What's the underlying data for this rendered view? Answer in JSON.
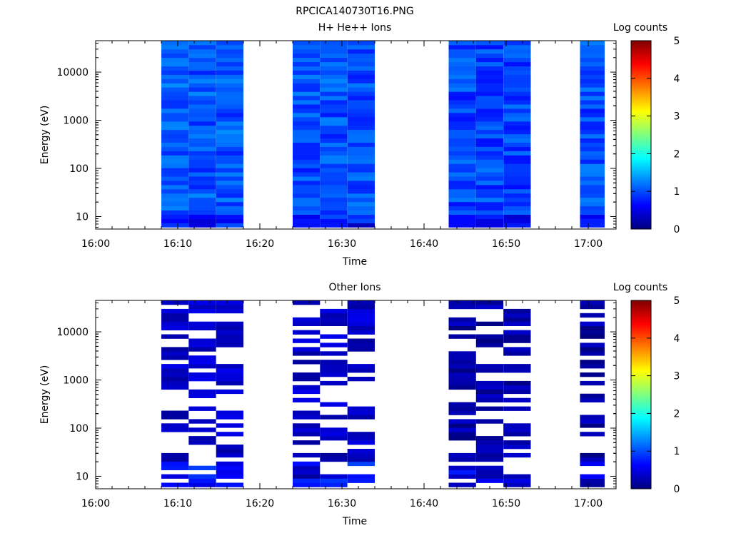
{
  "page_title": "RPCICA140730T16.PNG",
  "colormap": [
    "#00007f",
    "#0000ff",
    "#007fff",
    "#00ffff",
    "#7fff7f",
    "#ffff00",
    "#ff7f00",
    "#ff0000",
    "#7f0000"
  ],
  "chart_data": [
    {
      "type": "heatmap",
      "title": "H+ He++ Ions",
      "xlabel": "Time",
      "ylabel": "Energy (eV)",
      "x_ticks": [
        "16:00",
        "16:10",
        "16:20",
        "16:30",
        "16:40",
        "16:50",
        "17:00"
      ],
      "y_ticks": [
        "10",
        "100",
        "1000",
        "10000"
      ],
      "y_scale": "log",
      "ylim": [
        5.5,
        45000
      ],
      "colorbar": {
        "label": "Log counts",
        "ticks": [
          "0",
          "1",
          "2",
          "3",
          "4",
          "5"
        ],
        "range": [
          0,
          5
        ]
      },
      "blocks": [
        {
          "start": "16:08",
          "end": "16:18",
          "columns": 3,
          "level": 1.05
        },
        {
          "start": "16:24",
          "end": "16:34",
          "columns": 3,
          "level": 1.0
        },
        {
          "start": "16:43",
          "end": "16:53",
          "columns": 3,
          "level": 0.95
        },
        {
          "start": "16:59",
          "end": "17:02",
          "columns": 1,
          "level": 1.0
        }
      ]
    },
    {
      "type": "heatmap",
      "title": "Other Ions",
      "xlabel": "Time",
      "ylabel": "Energy (eV)",
      "x_ticks": [
        "16:00",
        "16:10",
        "16:20",
        "16:30",
        "16:40",
        "16:50",
        "17:00"
      ],
      "y_ticks": [
        "10",
        "100",
        "1000",
        "10000"
      ],
      "y_scale": "log",
      "ylim": [
        5.5,
        45000
      ],
      "colorbar": {
        "label": "Log counts",
        "ticks": [
          "0",
          "1",
          "2",
          "3",
          "4",
          "5"
        ],
        "range": [
          0,
          5
        ]
      },
      "blocks": [
        {
          "start": "16:08",
          "end": "16:18",
          "columns": 3,
          "level": 0.35
        },
        {
          "start": "16:24",
          "end": "16:34",
          "columns": 3,
          "level": 0.35
        },
        {
          "start": "16:43",
          "end": "16:53",
          "columns": 3,
          "level": 0.2
        },
        {
          "start": "16:59",
          "end": "17:02",
          "columns": 1,
          "level": 0.2
        }
      ]
    }
  ]
}
